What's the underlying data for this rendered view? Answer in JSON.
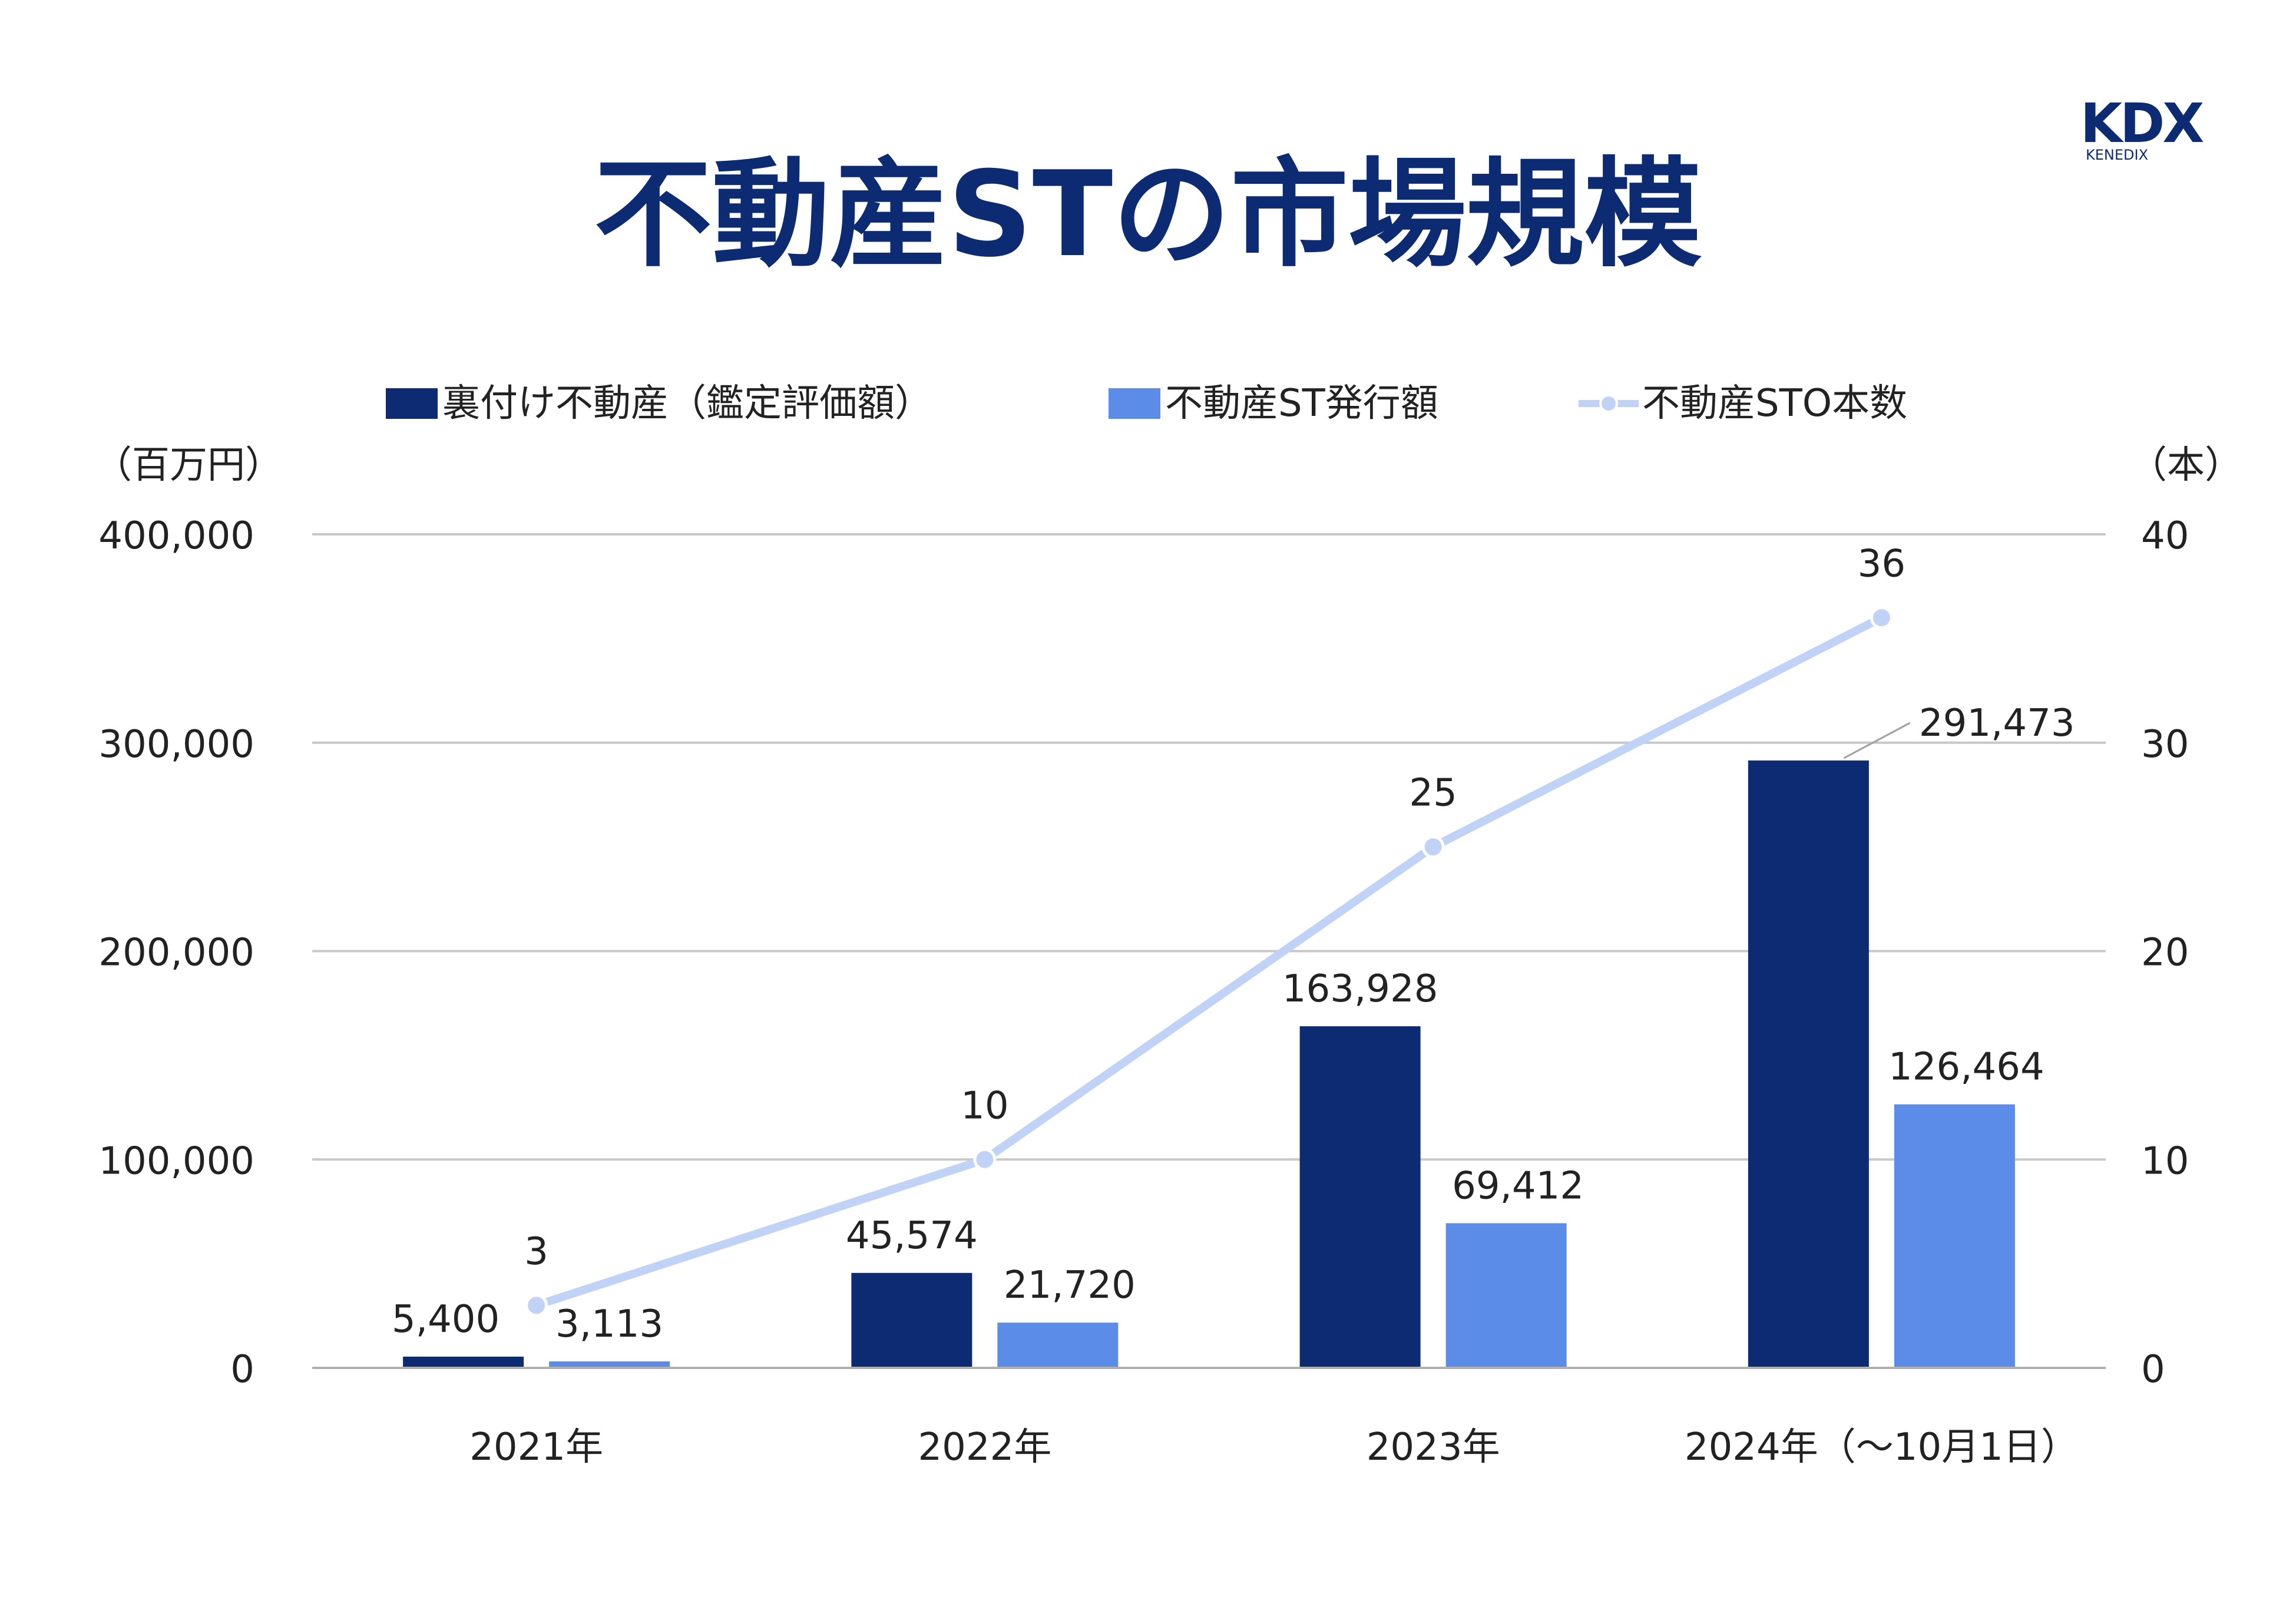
{
  "title": "不動産STの市場規模",
  "logo": {
    "mark": "KDX",
    "sub": "KENEDIX"
  },
  "colors": {
    "title": "#0d2b72",
    "dark_bar": "#0d2b72",
    "light_bar": "#5b8de8",
    "line": "#c0d2f5",
    "text": "#222222",
    "grid": "#c8c8c8",
    "axis": "#b0b0b0",
    "leader": "#a0a0a0"
  },
  "legend": [
    {
      "label": "裏付け不動産（鑑定評価額）",
      "marker": "bar-dark-swatch"
    },
    {
      "label": "不動産ST発行額",
      "marker": "bar-light-swatch"
    },
    {
      "label": "不動産STO本数",
      "marker": "line-dot-swatch"
    }
  ],
  "units": {
    "left": "（百万円）",
    "right": "（本）"
  },
  "chart_data": {
    "type": "bar",
    "categories": [
      "2021年",
      "2022年",
      "2023年",
      "2024年（～10月1日）"
    ],
    "series": [
      {
        "name": "裏付け不動産（鑑定評価額）",
        "type": "bar",
        "axis": "left",
        "values": [
          5400,
          45574,
          163928,
          291473
        ],
        "labels": [
          "5,400",
          "45,574",
          "163,928",
          "291,473"
        ]
      },
      {
        "name": "不動産ST発行額",
        "type": "bar",
        "axis": "left",
        "values": [
          3113,
          21720,
          69412,
          126464
        ],
        "labels": [
          "3,113",
          "21,720",
          "69,412",
          "126,464"
        ]
      },
      {
        "name": "不動産STO本数",
        "type": "line",
        "axis": "right",
        "values": [
          3,
          10,
          25,
          36
        ],
        "labels": [
          "3",
          "10",
          "25",
          "36"
        ]
      }
    ],
    "y_left": {
      "label": "（百万円）",
      "ylim": [
        0,
        400000
      ],
      "ticks": [
        0,
        100000,
        200000,
        300000,
        400000
      ],
      "tick_labels": [
        "0",
        "100,000",
        "200,000",
        "300,000",
        "400,000"
      ]
    },
    "y_right": {
      "label": "（本）",
      "ylim": [
        0,
        40
      ],
      "ticks": [
        0,
        10,
        20,
        30,
        40
      ],
      "tick_labels": [
        "0",
        "10",
        "20",
        "30",
        "40"
      ]
    },
    "grid": true,
    "legend_position": "top"
  }
}
